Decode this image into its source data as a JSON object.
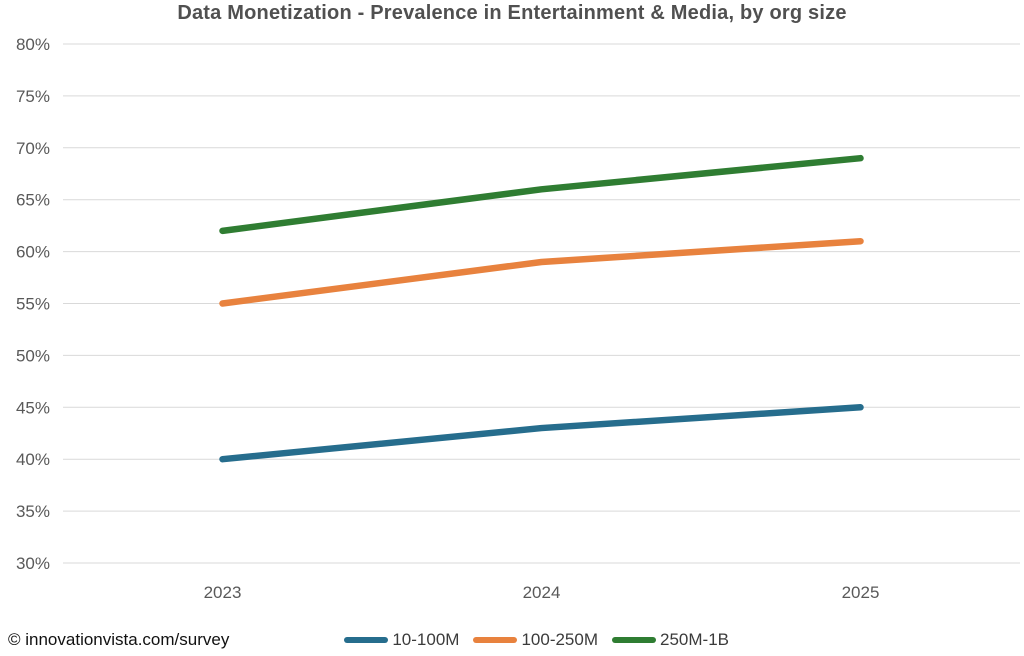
{
  "chart_data": {
    "type": "line",
    "title": "Data Monetization - Prevalence in Entertainment & Media, by org size",
    "categories": [
      "2023",
      "2024",
      "2025"
    ],
    "series": [
      {
        "name": "10-100M",
        "color": "#266D8D",
        "values": [
          40,
          43,
          45
        ]
      },
      {
        "name": "100-250M",
        "color": "#E8823E",
        "values": [
          55,
          59,
          61
        ]
      },
      {
        "name": "250M-1B",
        "color": "#2F7D32",
        "values": [
          62,
          66,
          69
        ]
      }
    ],
    "xlabel": "",
    "ylabel": "",
    "ylim": [
      30,
      80
    ],
    "ytick_step": 5,
    "ytick_suffix": "%",
    "grid": true,
    "legend_position": "bottom"
  },
  "footer": {
    "source": "© innovationvista.com/survey"
  },
  "colors": {
    "grid": "#D9D9D9",
    "axis_text": "#595959",
    "title_text": "#505050",
    "background": "#FFFFFF"
  }
}
